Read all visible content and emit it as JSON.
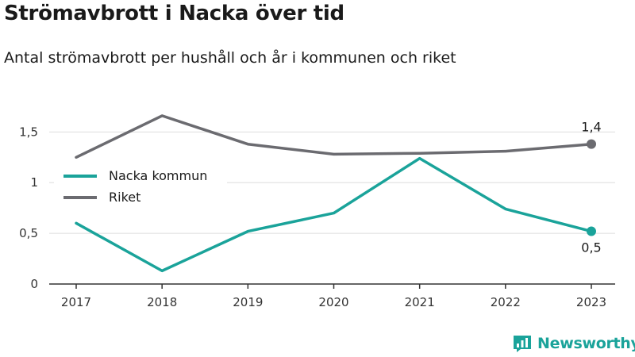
{
  "title": "Strömavbrott i Nacka över tid",
  "subtitle": "Antal strömavbrott per hushåll och år i kommunen och riket",
  "brand": "Newsworthy",
  "colors": {
    "nacka": "#1aa39a",
    "riket": "#6b6b70",
    "grid": "#dddddd",
    "axis": "#333333",
    "brand": "#1aa39a"
  },
  "chart_data": {
    "type": "line",
    "x": [
      "2017",
      "2018",
      "2019",
      "2020",
      "2021",
      "2022",
      "2023"
    ],
    "series": [
      {
        "name": "Nacka kommun",
        "values": [
          0.6,
          0.13,
          0.52,
          0.7,
          1.24,
          0.74,
          0.52
        ]
      },
      {
        "name": "Riket",
        "values": [
          1.25,
          1.66,
          1.38,
          1.28,
          1.29,
          1.31,
          1.38
        ]
      }
    ],
    "ylim": [
      0,
      1.8
    ],
    "yticks": [
      0,
      0.5,
      1,
      1.5
    ],
    "ytick_labels": [
      "0",
      "0,5",
      "1",
      "1,5"
    ],
    "grid": true,
    "legend": "top-left",
    "end_labels": {
      "Nacka kommun": "0,5",
      "Riket": "1,4"
    }
  }
}
